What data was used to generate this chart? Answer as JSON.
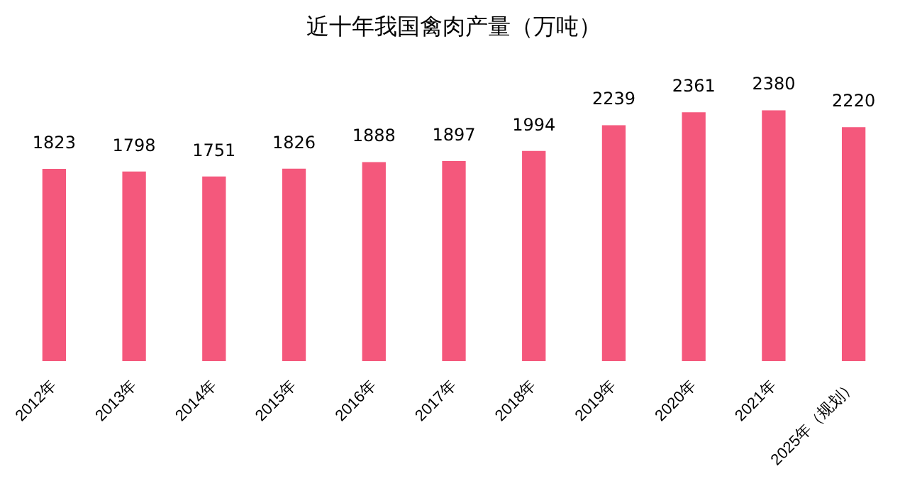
{
  "chart_data": {
    "type": "bar",
    "title": "近十年我国禽肉产量（万吨）",
    "categories": [
      "2012年",
      "2013年",
      "2014年",
      "2015年",
      "2016年",
      "2017年",
      "2018年",
      "2019年",
      "2020年",
      "2021年",
      "2025年（规划）"
    ],
    "values": [
      1823,
      1798,
      1751,
      1826,
      1888,
      1897,
      1994,
      2239,
      2361,
      2380,
      2220
    ],
    "color": "#f4587c",
    "data_labels": true,
    "grid": false,
    "legend": false
  }
}
